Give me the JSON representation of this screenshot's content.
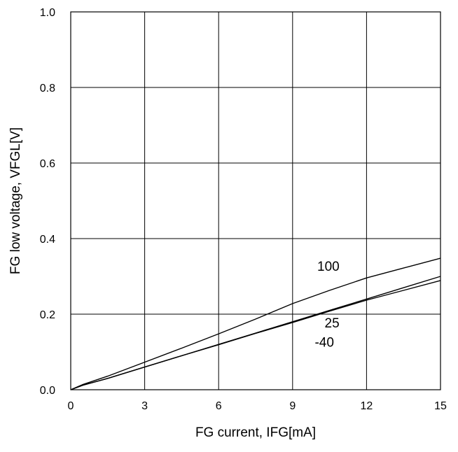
{
  "chart_data": {
    "type": "line",
    "title": "",
    "xlabel": "FG current, IFG[mA]",
    "ylabel": "FG low voltage, VFGL[V]",
    "xlim": [
      0,
      15
    ],
    "ylim": [
      0,
      1.0
    ],
    "x_ticks": [
      "0",
      "3",
      "6",
      "9",
      "12",
      "15"
    ],
    "y_ticks": [
      "0.0",
      "0.2",
      "0.4",
      "0.6",
      "0.8",
      "1.0"
    ],
    "grid": true,
    "legend": "none",
    "series": [
      {
        "name": "100",
        "x": [
          0,
          0.5,
          1.5,
          3,
          4.5,
          6,
          7.5,
          9,
          10.5,
          12,
          13.5,
          15
        ],
        "y": [
          0,
          0.014,
          0.036,
          0.073,
          0.11,
          0.148,
          0.187,
          0.228,
          0.263,
          0.296,
          0.322,
          0.348
        ]
      },
      {
        "name": "25",
        "x": [
          0,
          0.5,
          1.5,
          3,
          4.5,
          6,
          7.5,
          9,
          10.5,
          12,
          13.5,
          15
        ],
        "y": [
          0,
          0.012,
          0.03,
          0.06,
          0.09,
          0.12,
          0.15,
          0.18,
          0.21,
          0.24,
          0.27,
          0.3
        ]
      },
      {
        "name": "-40",
        "x": [
          0,
          0.5,
          1.5,
          3,
          4.5,
          6,
          7.5,
          9,
          10.5,
          12,
          13.5,
          15
        ],
        "y": [
          0,
          0.012,
          0.03,
          0.06,
          0.09,
          0.119,
          0.149,
          0.178,
          0.208,
          0.237,
          0.263,
          0.289
        ]
      }
    ],
    "series_labels": [
      {
        "text": "100",
        "at_x": 10.0,
        "at_y": 0.315
      },
      {
        "text": "25",
        "at_x": 10.3,
        "at_y": 0.165
      },
      {
        "text": "-40",
        "at_x": 9.9,
        "at_y": 0.114
      }
    ],
    "colors": {
      "line": "#000000",
      "grid": "#000000",
      "background": "#ffffff"
    }
  }
}
